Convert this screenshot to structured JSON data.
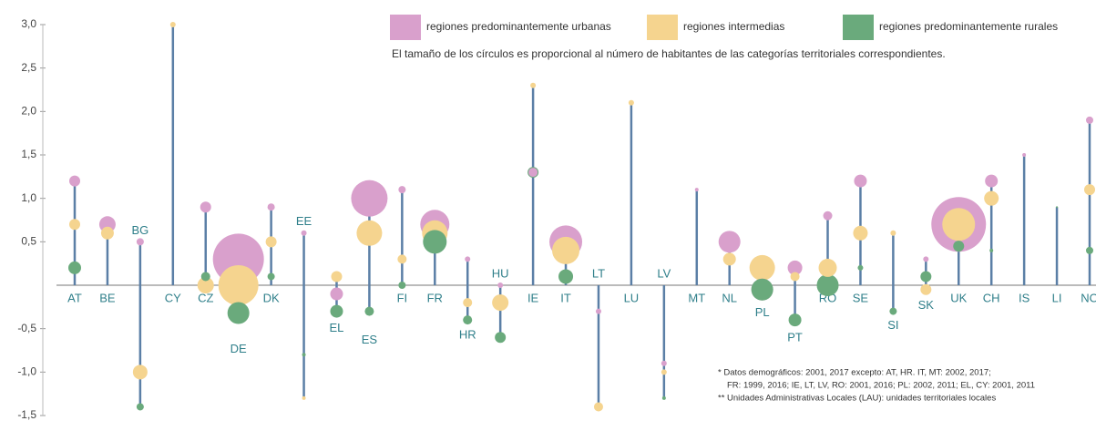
{
  "chart_data": {
    "type": "bubble",
    "ylim": [
      -1.5,
      3.0
    ],
    "yticks": [
      {
        "value": 3.0,
        "label": "3,0"
      },
      {
        "value": 2.5,
        "label": "2,5"
      },
      {
        "value": 2.0,
        "label": "2,0"
      },
      {
        "value": 1.5,
        "label": "1,5"
      },
      {
        "value": 1.0,
        "label": "1,0"
      },
      {
        "value": 0.5,
        "label": "0,5"
      },
      {
        "value": -0.5,
        "label": "-0,5"
      },
      {
        "value": -1.0,
        "label": "-1,0"
      },
      {
        "value": -1.5,
        "label": "-1,5"
      }
    ],
    "categories": [
      "AT",
      "BE",
      "BG",
      "CY",
      "CZ",
      "DE",
      "DK",
      "EE",
      "EL",
      "ES",
      "FI",
      "FR",
      "HR",
      "HU",
      "IE",
      "IT",
      "LT",
      "LU",
      "LV",
      "MT",
      "NL",
      "PL",
      "PT",
      "RO",
      "SE",
      "SI",
      "SK",
      "UK",
      "CH",
      "IS",
      "LI",
      "NO"
    ],
    "series": [
      {
        "name": "regiones predominantemente urbanas",
        "color": "#d9a0cc",
        "values": [
          1.2,
          0.7,
          0.5,
          null,
          0.9,
          0.3,
          0.9,
          0.6,
          -0.1,
          1.0,
          1.1,
          0.7,
          0.3,
          0.0,
          1.3,
          0.5,
          -0.3,
          null,
          -0.9,
          1.1,
          0.5,
          -0.05,
          0.2,
          0.8,
          1.2,
          null,
          0.3,
          0.7,
          1.2,
          1.5,
          null,
          1.9
        ],
        "sizes": [
          36,
          81,
          16,
          null,
          36,
          784,
          16,
          9,
          49,
          400,
          16,
          256,
          9,
          9,
          25,
          324,
          9,
          null,
          9,
          4,
          144,
          144,
          64,
          25,
          49,
          null,
          9,
          900,
          49,
          4,
          null,
          16
        ]
      },
      {
        "name": "regiones intermedias",
        "color": "#f5d48f",
        "values": [
          0.7,
          0.6,
          -1.0,
          3.0,
          0.0,
          0.0,
          0.5,
          -1.3,
          0.1,
          0.6,
          0.3,
          0.6,
          -0.2,
          -0.2,
          2.3,
          0.4,
          -1.4,
          2.1,
          -1.0,
          null,
          0.3,
          0.2,
          0.1,
          0.2,
          0.6,
          0.6,
          -0.05,
          0.7,
          1.0,
          null,
          null,
          1.1
        ],
        "sizes": [
          36,
          49,
          64,
          9,
          81,
          484,
          36,
          4,
          36,
          196,
          25,
          196,
          25,
          81,
          9,
          225,
          25,
          9,
          9,
          null,
          49,
          196,
          25,
          100,
          64,
          9,
          36,
          324,
          64,
          null,
          null,
          36
        ]
      },
      {
        "name": "regiones predominantemente rurales",
        "color": "#6aaa7c",
        "values": [
          0.2,
          null,
          -1.4,
          null,
          0.1,
          -0.32,
          0.1,
          -0.8,
          -0.3,
          -0.3,
          0.0,
          0.5,
          -0.4,
          -0.6,
          1.3,
          0.1,
          null,
          null,
          -1.3,
          null,
          null,
          -0.05,
          -0.4,
          0.0,
          0.2,
          -0.3,
          0.1,
          0.45,
          0.4,
          null,
          0.9,
          0.4
        ],
        "sizes": [
          49,
          null,
          16,
          null,
          25,
          144,
          16,
          4,
          49,
          25,
          16,
          169,
          25,
          36,
          36,
          64,
          null,
          null,
          4,
          null,
          null,
          144,
          49,
          144,
          9,
          16,
          36,
          36,
          4,
          null,
          1,
          16
        ]
      }
    ],
    "note": "El tamaño de los círculos es proporcional al número de habitantes de las categorías territoriales correspondientes.",
    "footnotes": [
      "*  Datos demográficos: 2001, 2017 excepto: AT, HR. IT, MT: 2002, 2017;",
      "FR: 1999, 2016; IE, LT, LV, RO: 2001, 2016; PL: 2002, 2011; EL, CY: 2001, 2011",
      "**  Unidades Administrativas Locales (LAU): unidades territoriales locales"
    ]
  }
}
